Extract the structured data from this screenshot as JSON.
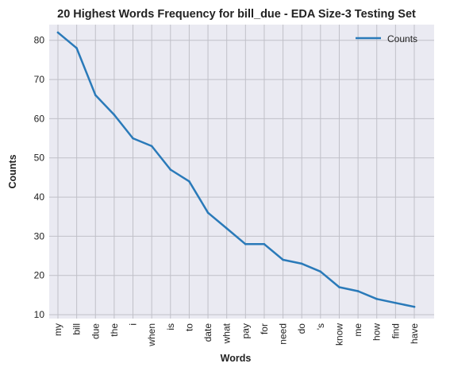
{
  "colors": {
    "background": "#eaeaf2",
    "grid": "#c0c0c8",
    "line": "#2a7ab9"
  },
  "chart_data": {
    "type": "line",
    "title": "20 Highest Words Frequency for bill_due - EDA Size-3 Testing Set",
    "xlabel": "Words",
    "ylabel": "Counts",
    "ylim": [
      9,
      84
    ],
    "yticks": [
      10,
      20,
      30,
      40,
      50,
      60,
      70,
      80
    ],
    "grid": true,
    "legend_position": "top-right",
    "categories": [
      "my",
      "bill",
      "due",
      "the",
      "i",
      "when",
      "is",
      "to",
      "date",
      "what",
      "pay",
      "for",
      "need",
      "do",
      "'s",
      "know",
      "me",
      "how",
      "find",
      "have"
    ],
    "series": [
      {
        "name": "Counts",
        "values": [
          82,
          78,
          66,
          61,
          55,
          53,
          47,
          44,
          36,
          32,
          28,
          28,
          24,
          23,
          21,
          17,
          16,
          14,
          13,
          12
        ]
      }
    ]
  }
}
